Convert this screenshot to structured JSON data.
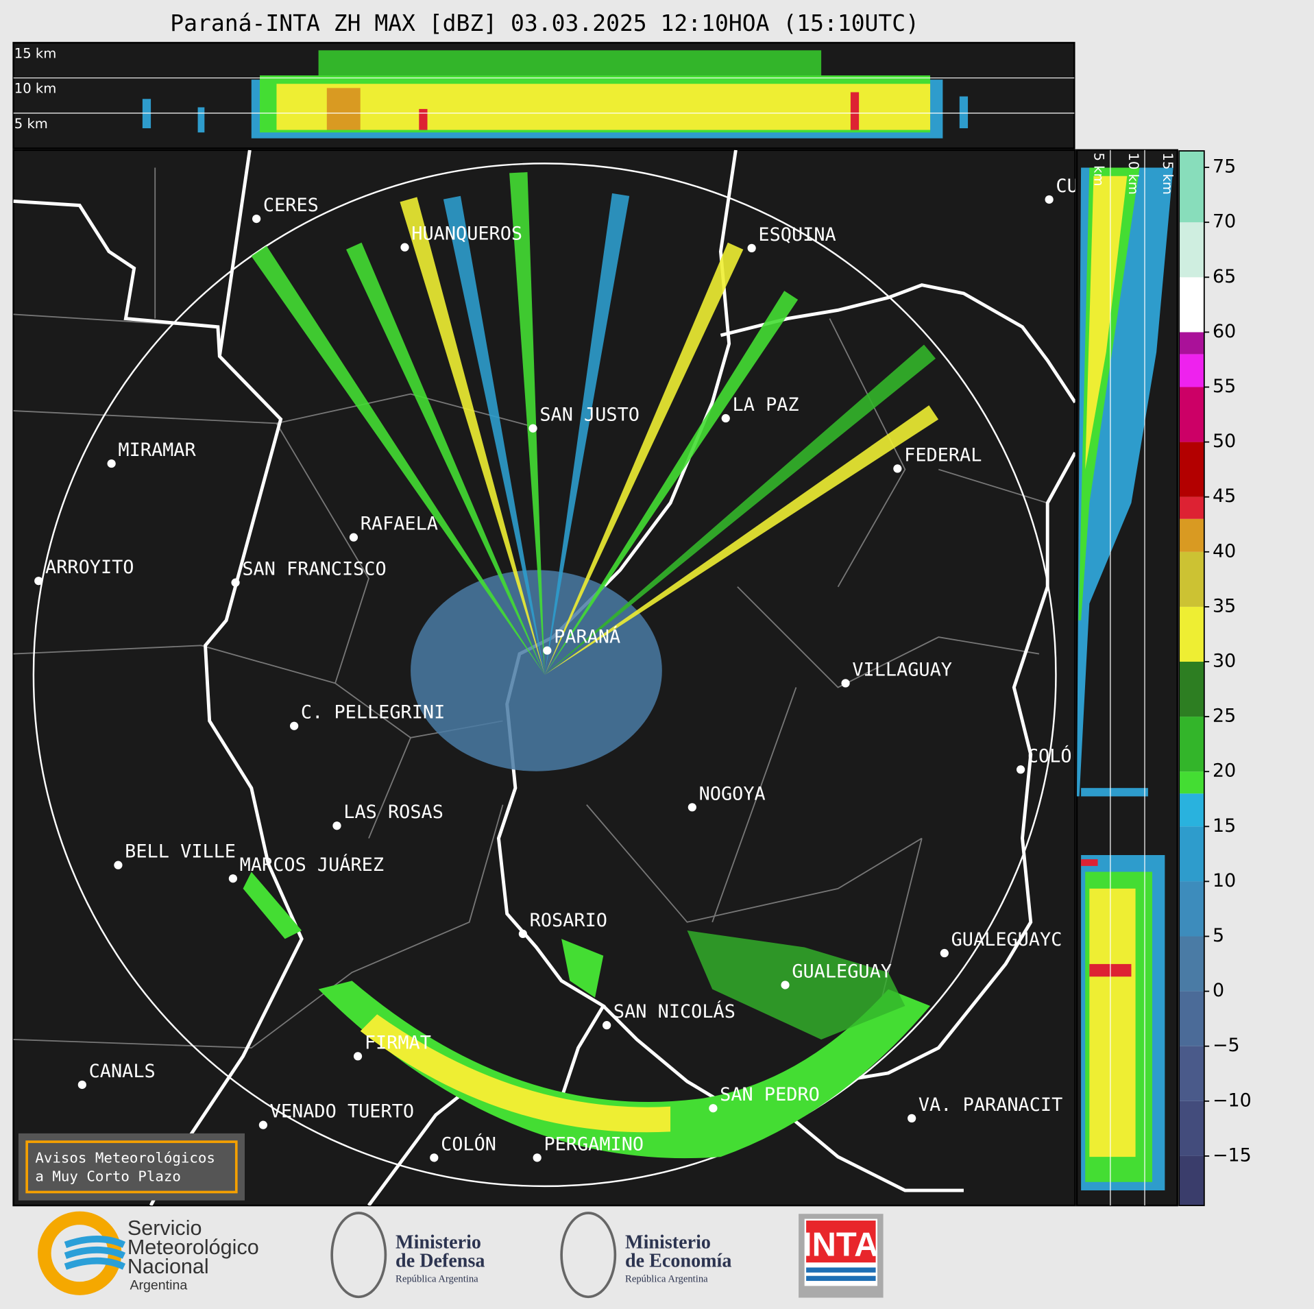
{
  "header": {
    "title": "Paraná-INTA ZH MAX [dBZ] 03.03.2025 12:10HOA (15:10UTC)"
  },
  "height_panel": {
    "labels": [
      "15 km",
      "10 km",
      "5 km"
    ]
  },
  "side_panel": {
    "labels": [
      "5 km",
      "10 km",
      "15 km"
    ]
  },
  "cities": [
    "CERES",
    "HUANQUEROS",
    "ESQUINA",
    "SAN JUSTO",
    "LA PAZ",
    "MIRAMAR",
    "FEDERAL",
    "RAFAELA",
    "ARROYITO",
    "SAN FRANCISCO",
    "PARANÁ",
    "VILLAGUAY",
    "C. PELLEGRINI",
    "COLÓ",
    "NOGOYA",
    "LAS ROSAS",
    "BELL VILLE",
    "MARCOS JUÁREZ",
    "ROSARIO",
    "GUALEGUAYC",
    "GUALEGUAY",
    "SAN NICOLÁS",
    "FIRMAT",
    "CANALS",
    "SAN PEDRO",
    "VA. PARANACIT",
    "VENADO TUERTO",
    "COLÓN",
    "PERGAMINO",
    "CU"
  ],
  "notice": [
    "Avisos Meteorológicos",
    "a Muy Corto Plazo"
  ],
  "colorbar": {
    "lim": [
      -19.5,
      76.5
    ],
    "ticks": [
      75,
      70,
      65,
      60,
      55,
      50,
      45,
      40,
      35,
      30,
      25,
      20,
      15,
      10,
      5,
      0,
      {
        "value": -5,
        "label": "−5"
      },
      {
        "value": -10,
        "label": "−10"
      },
      {
        "value": -15,
        "label": "−15"
      }
    ],
    "bounds": [
      -20,
      -15,
      -10,
      -5,
      0,
      5,
      10,
      15,
      18,
      20,
      25,
      30,
      35,
      40,
      43,
      45,
      50,
      55,
      58,
      60,
      65,
      70,
      77
    ],
    "colors": [
      "#3a3d6b",
      "#434c7c",
      "#4a5a8a",
      "#4b6b98",
      "#4a7ba5",
      "#3d8cbc",
      "#2e9ccc",
      "#29b2de",
      "#44dd33",
      "#33b52a",
      "#2d7e22",
      "#eeee33",
      "#ccc233",
      "#d99a22",
      "#dd2233",
      "#b30000",
      "#cc0066",
      "#ee22ee",
      "#aa1199",
      "#ffffff",
      "#cfeee0",
      "#88ddbb"
    ]
  },
  "logos": {
    "smn": [
      "Servicio",
      "Meteorológico",
      "Nacional",
      "Argentina"
    ],
    "defensa": [
      "Ministerio",
      "de Defensa",
      "República Argentina"
    ],
    "economia": [
      "Ministerio",
      "de Economía",
      "República Argentina"
    ],
    "inta": "INTA"
  }
}
